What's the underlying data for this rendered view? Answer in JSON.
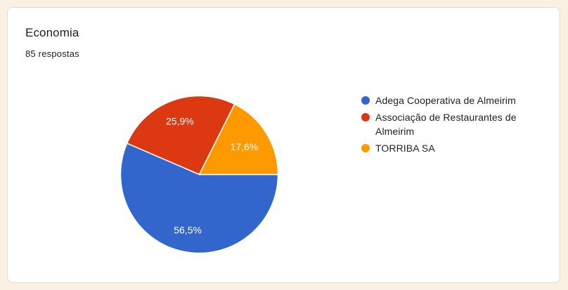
{
  "page": {
    "background_color": "#FAF1E3"
  },
  "card": {
    "title": "Economia",
    "subtitle": "85 respostas",
    "background_color": "#FFFFFF",
    "border_color": "#DADCE0"
  },
  "chart_data": {
    "type": "pie",
    "title": "Economia",
    "subtitle": "85 respostas",
    "legend_position": "right",
    "start_angle": "east",
    "direction": "clockwise",
    "slices": [
      {
        "label": "Adega Cooperativa de Almeirim",
        "value_pct": 56.5,
        "display": "56,5%",
        "color": "#3366CC"
      },
      {
        "label": "Associação de Restaurantes de Almeirim",
        "value_pct": 25.9,
        "display": "25,9%",
        "color": "#DC3912"
      },
      {
        "label": "TORRIBA SA",
        "value_pct": 17.6,
        "display": "17,6%",
        "color": "#FF9900"
      }
    ],
    "label_text_color": "#FFFFFF"
  }
}
